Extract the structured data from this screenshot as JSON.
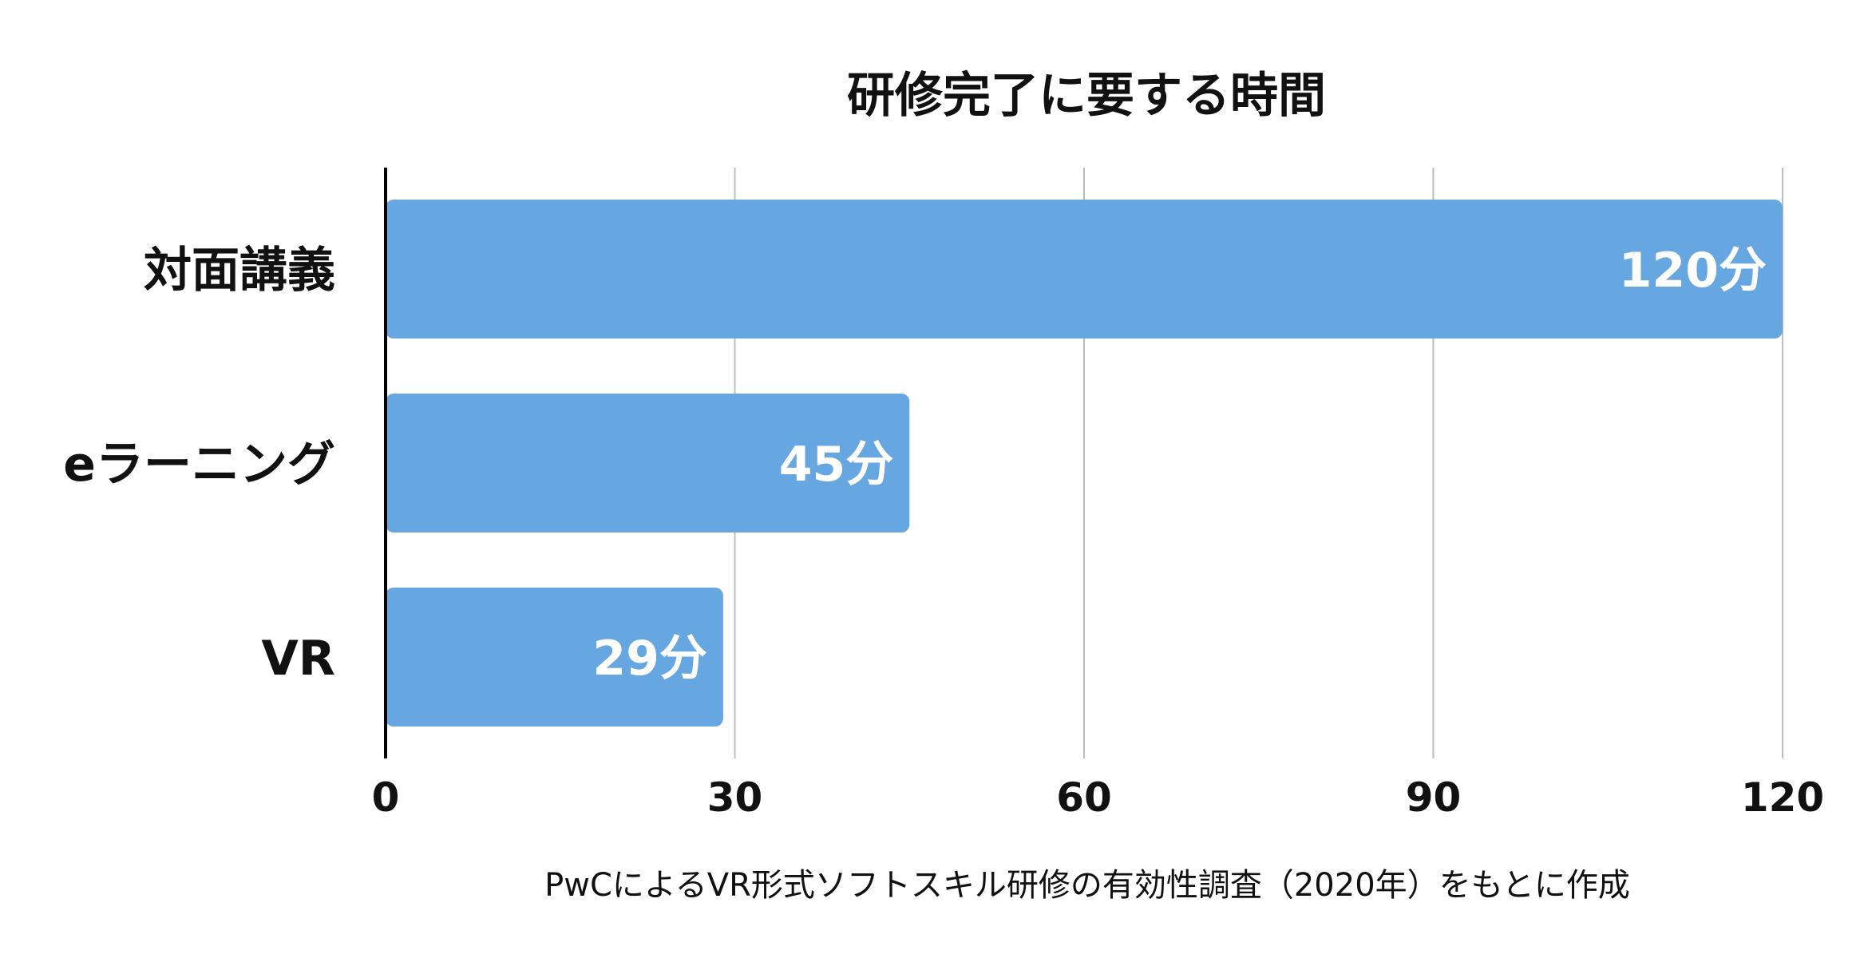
{
  "chart_data": {
    "type": "bar",
    "orientation": "horizontal",
    "title": "研修完了に要する時間",
    "categories": [
      "対面講義",
      "eラーニング",
      "VR"
    ],
    "values": [
      120,
      45,
      29
    ],
    "data_labels": [
      "120分",
      "45分",
      "29分"
    ],
    "xlim": [
      0,
      120
    ],
    "x_ticks": [
      "0",
      "30",
      "60",
      "90",
      "120"
    ],
    "x_tick_values": [
      0,
      30,
      60,
      90,
      120
    ],
    "xlabel": "",
    "ylabel": "",
    "grid": true,
    "legend": "none",
    "bar_color": "#67A7E1",
    "source_note": "PwCによるVR形式ソフトスキル研修の有効性調査（2020年）をもとに作成"
  },
  "colors": {
    "bar": "#67A7E1",
    "grid": "#BDBDBD",
    "axis": "#000000",
    "text": "#111111",
    "bar_label": "#FFFFFF"
  }
}
